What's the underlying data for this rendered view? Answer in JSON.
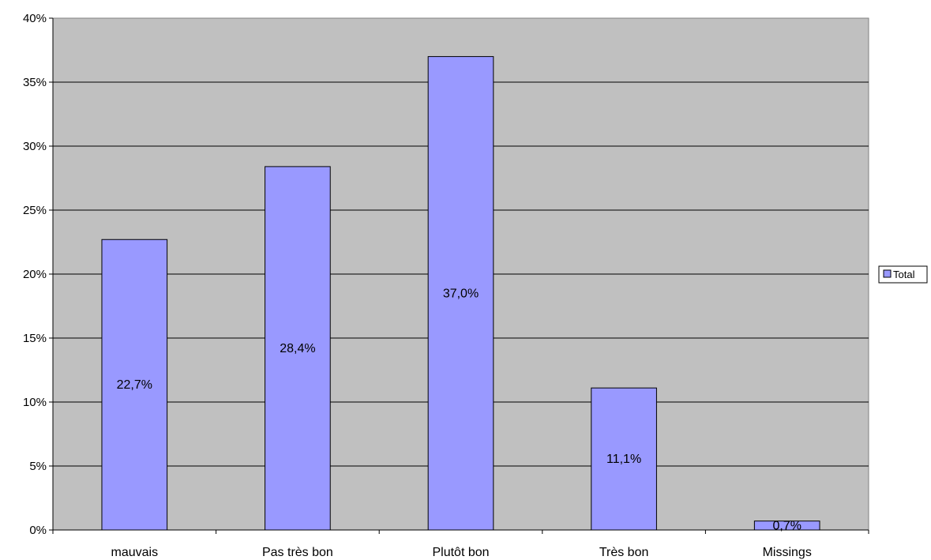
{
  "chart_data": {
    "type": "bar",
    "categories": [
      "mauvais",
      "Pas très bon",
      "Plutôt bon",
      "Très bon",
      "Missings"
    ],
    "series": [
      {
        "name": "Total",
        "values": [
          22.7,
          28.4,
          37.0,
          11.1,
          0.7
        ]
      }
    ],
    "data_labels": [
      "22,7%",
      "28,4%",
      "37,0%",
      "11,1%",
      "0,7%"
    ],
    "y_ticks": [
      "0%",
      "5%",
      "10%",
      "15%",
      "20%",
      "25%",
      "30%",
      "35%",
      "40%"
    ],
    "ylim": [
      0,
      40
    ],
    "y_unit": "%",
    "grid": true,
    "legend_position": "right",
    "colors": {
      "bar_fill": "#9999ff",
      "plot_background": "#c0c0c0",
      "grid": "#000000",
      "outline": "#000000"
    }
  }
}
